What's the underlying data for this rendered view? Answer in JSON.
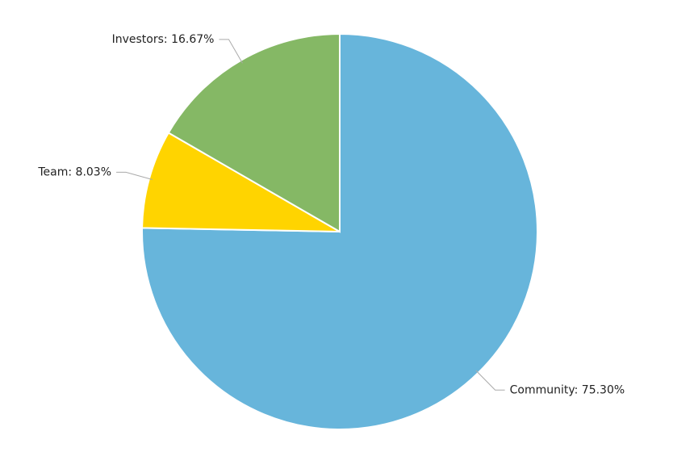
{
  "chart_data": {
    "type": "pie",
    "values": [
      75.3,
      8.03,
      16.67
    ],
    "value_labels": [
      "Community: 75.30%",
      "Team: 8.03%",
      "Investors: 16.67%"
    ],
    "colors": [
      "#67b5db",
      "#ffd400",
      "#85b865"
    ]
  }
}
